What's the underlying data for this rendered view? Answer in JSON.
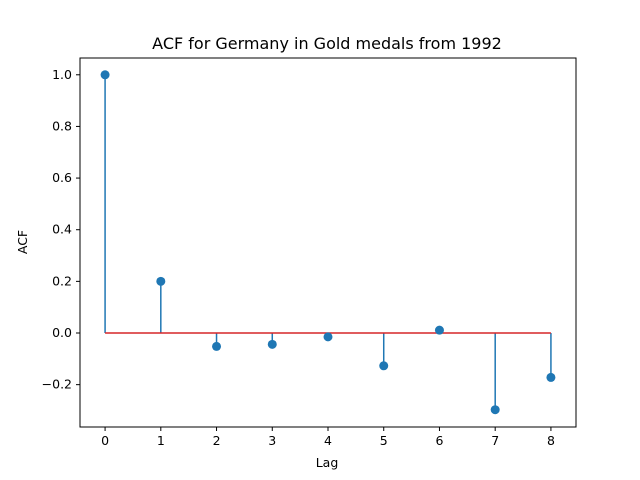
{
  "chart_data": {
    "type": "stem",
    "title": "ACF for Germany in Gold medals from 1992",
    "xlabel": "Lag",
    "ylabel": "ACF",
    "x": [
      0,
      1,
      2,
      3,
      4,
      5,
      6,
      7,
      8
    ],
    "values": [
      1.0,
      0.2,
      -0.052,
      -0.044,
      -0.015,
      -0.127,
      0.011,
      -0.297,
      -0.172
    ],
    "xlim": [
      -0.45,
      8.45
    ],
    "ylim": [
      -0.364,
      1.065
    ],
    "xticks": [
      0,
      1,
      2,
      3,
      4,
      5,
      6,
      7,
      8
    ],
    "yticks": [
      -0.2,
      0.0,
      0.2,
      0.4,
      0.6,
      0.8,
      1.0
    ],
    "ytick_labels": [
      "−0.2",
      "0.0",
      "0.2",
      "0.4",
      "0.6",
      "0.8",
      "1.0"
    ],
    "baseline": 0,
    "colors": {
      "stem": "#1f77b4",
      "marker": "#1f77b4",
      "baseline": "#d62728",
      "axes": "#000000"
    },
    "grid": false
  }
}
